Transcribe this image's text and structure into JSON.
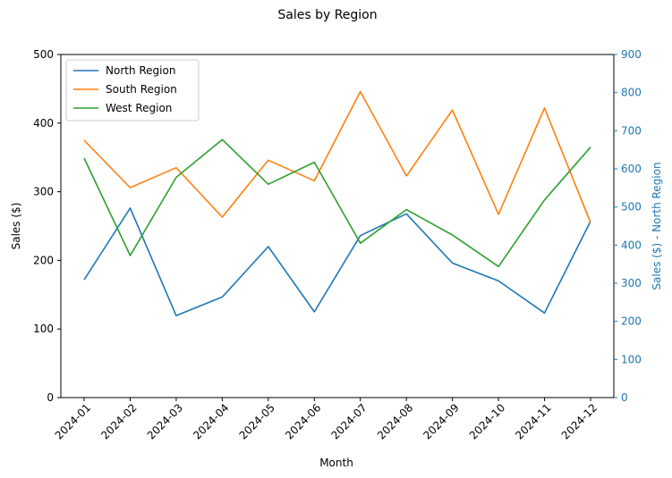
{
  "chart_data": {
    "type": "line",
    "title": "Sales by Region",
    "xlabel": "Month",
    "ylabel": "Sales ($)",
    "y2label": "Sales ($) - North Region",
    "categories": [
      "2024-01",
      "2024-02",
      "2024-03",
      "2024-04",
      "2024-05",
      "2024-06",
      "2024-07",
      "2024-08",
      "2024-09",
      "2024-10",
      "2024-11",
      "2024-12"
    ],
    "ylim": [
      0,
      500
    ],
    "y2lim": [
      0,
      900
    ],
    "yticks": [
      "0",
      "100",
      "200",
      "300",
      "400",
      "500"
    ],
    "y2ticks": [
      "0",
      "100",
      "200",
      "300",
      "400",
      "500",
      "600",
      "700",
      "800",
      "900"
    ],
    "grid": false,
    "legend_position": "top-left",
    "series": [
      {
        "name": "North Region",
        "axis": "right",
        "color": "#1f77b4",
        "values": [
          309,
          497,
          215,
          264,
          396,
          225,
          425,
          482,
          353,
          306,
          222,
          463
        ]
      },
      {
        "name": "South Region",
        "axis": "left",
        "color": "#ff7f0e",
        "values": [
          375,
          306,
          335,
          263,
          346,
          316,
          446,
          323,
          419,
          267,
          422,
          255
        ]
      },
      {
        "name": "West Region",
        "axis": "left",
        "color": "#2ca02c",
        "values": [
          349,
          207,
          321,
          376,
          311,
          343,
          225,
          274,
          237,
          191,
          288,
          365
        ]
      }
    ]
  }
}
